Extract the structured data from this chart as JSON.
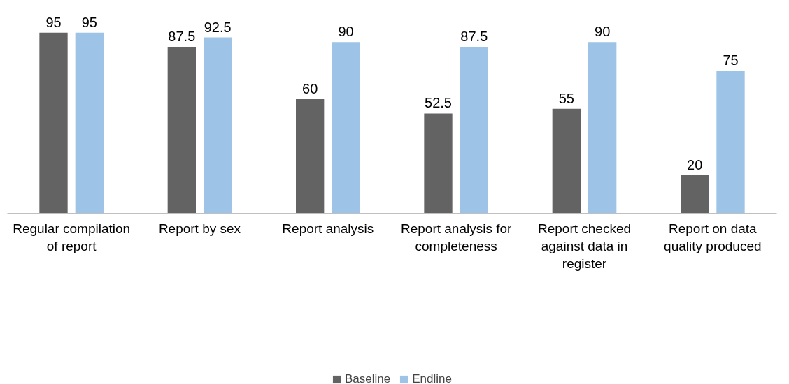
{
  "chart_data": {
    "type": "bar",
    "categories": [
      "Regular compilation of report",
      "Report by sex",
      "Report analysis",
      "Report analysis for completeness",
      "Report checked against data in register",
      "Report on data quality produced"
    ],
    "series": [
      {
        "name": "Baseline",
        "color": "#636363",
        "values": [
          95,
          87.5,
          60,
          52.5,
          55,
          20
        ]
      },
      {
        "name": "Endline",
        "color": "#9dc3e6",
        "values": [
          95,
          92.5,
          90,
          87.5,
          90,
          75
        ]
      }
    ],
    "data_labels": true,
    "grid": false,
    "legend": "bottom"
  }
}
